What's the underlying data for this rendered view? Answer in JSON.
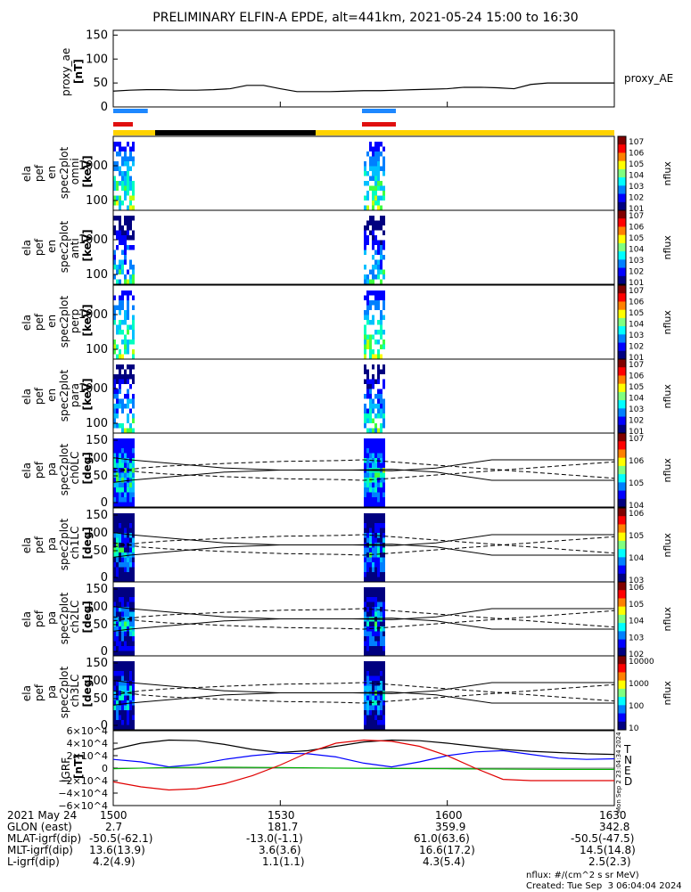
{
  "title": "PRELIMINARY ELFIN-A EPDE, alt=441km, 2021-05-24 15:00 to 16:30",
  "colors": {
    "blue_bar": "#1e88ff",
    "red_bar": "#e01010",
    "yellow_bar": "#ffd200",
    "black_bar": "#000000",
    "bfield_T": "#000000",
    "bfield_N": "#0000ff",
    "bfield_E": "#00b000",
    "bfield_D": "#e00000"
  },
  "proxy_ae": {
    "ylabel_lines": [
      "proxy_ae",
      "[nT]"
    ],
    "legend": "proxy_AE",
    "yticks": [
      "150",
      "100",
      "50",
      "0"
    ]
  },
  "spectrograms": [
    {
      "label_lines": [
        "ela",
        "pef",
        "en",
        "spec2plot",
        "omni",
        "[keV]"
      ],
      "yticks": [
        "1000",
        "100"
      ],
      "cbar_ticks": [
        "10^7",
        "10^6",
        "10^5",
        "10^4",
        "10^3",
        "10^2",
        "10^1"
      ],
      "cbar_label": "nflux"
    },
    {
      "label_lines": [
        "ela",
        "pef",
        "en",
        "spec2plot",
        "anti",
        "[keV]"
      ],
      "yticks": [
        "1000",
        "100"
      ],
      "cbar_ticks": [
        "10^7",
        "10^6",
        "10^5",
        "10^4",
        "10^3",
        "10^2",
        "10^1"
      ],
      "cbar_label": "nflux"
    },
    {
      "label_lines": [
        "ela",
        "pef",
        "en",
        "spec2plot",
        "perp",
        "[keV]"
      ],
      "yticks": [
        "1000",
        "100"
      ],
      "cbar_ticks": [
        "10^7",
        "10^6",
        "10^5",
        "10^4",
        "10^3",
        "10^2",
        "10^1"
      ],
      "cbar_label": "nflux"
    },
    {
      "label_lines": [
        "ela",
        "pef",
        "en",
        "spec2plot",
        "para",
        "[keV]"
      ],
      "yticks": [
        "1000",
        "100"
      ],
      "cbar_ticks": [
        "10^7",
        "10^6",
        "10^5",
        "10^4",
        "10^3",
        "10^2",
        "10^1"
      ],
      "cbar_label": "nflux"
    },
    {
      "label_lines": [
        "ela",
        "pef",
        "pa",
        "spec2plot",
        "ch0LC",
        "[deg]"
      ],
      "yticks": [
        "150",
        "100",
        "50",
        "0"
      ],
      "cbar_ticks": [
        "10^7",
        "10^6",
        "10^5",
        "10^4"
      ],
      "cbar_label": "nflux"
    },
    {
      "label_lines": [
        "ela",
        "pef",
        "pa",
        "spec2plot",
        "ch1LC",
        "[deg]"
      ],
      "yticks": [
        "150",
        "100",
        "50",
        "0"
      ],
      "cbar_ticks": [
        "10^6",
        "10^5",
        "10^4",
        "10^3"
      ],
      "cbar_label": "nflux"
    },
    {
      "label_lines": [
        "ela",
        "pef",
        "pa",
        "spec2plot",
        "ch2LC",
        "[deg]"
      ],
      "yticks": [
        "150",
        "100",
        "50",
        "0"
      ],
      "cbar_ticks": [
        "10^6",
        "10^5",
        "10^4",
        "10^3",
        "10^2"
      ],
      "cbar_label": "nflux"
    },
    {
      "label_lines": [
        "ela",
        "pef",
        "pa",
        "spec2plot",
        "ch3LC",
        "[deg]"
      ],
      "yticks": [
        "150",
        "100",
        "50",
        "0"
      ],
      "cbar_ticks": [
        "10000",
        "1000",
        "100",
        "10"
      ],
      "cbar_label": "nflux"
    }
  ],
  "igrf": {
    "ylabel_lines": [
      "IGRF",
      "[nT]"
    ],
    "yticks": [
      "6×10^4",
      "4×10^4",
      "2×10^4",
      "0",
      "−2×10^4",
      "−4×10^4",
      "−6×10^4"
    ],
    "legend": [
      "T",
      "N",
      "E",
      "D"
    ]
  },
  "timestamp_side": "Mon Sep  2 23:04:34 2024",
  "footer": {
    "rows": [
      {
        "label": "2021 May 24",
        "values": [
          "1500",
          "1530",
          "1600",
          "1630"
        ]
      },
      {
        "label": "GLON (east)",
        "values": [
          "2.7",
          "181.7",
          "359.9",
          "342.8"
        ]
      },
      {
        "label": "MLAT-igrf(dip)",
        "values": [
          "-50.5(-62.1)",
          "-13.0(-1.1)",
          "61.0(63.6)",
          "-50.5(-47.5)"
        ]
      },
      {
        "label": "MLT-igrf(dip)",
        "values": [
          "13.6(13.9)",
          "3.6(3.6)",
          "16.6(17.2)",
          "14.5(14.8)"
        ]
      },
      {
        "label": "L-igrf(dip)",
        "values": [
          "4.2(4.9)",
          "1.1(1.1)",
          "4.3(5.4)",
          "2.5(2.3)"
        ]
      }
    ],
    "units_note": "nflux: #/(cm^2 s sr MeV)",
    "created": "Created: Tue Sep  3 06:04:04 2024"
  },
  "chart_data": {
    "type": "line",
    "title": "PRELIMINARY ELFIN-A EPDE, alt=441km, 2021-05-24 15:00 to 16:30",
    "x_ticks": [
      "1500",
      "1530",
      "1600",
      "1630"
    ],
    "x_minutes": [
      0,
      30,
      60,
      90
    ],
    "series": [
      {
        "name": "proxy_AE",
        "panel": "proxy_ae",
        "x_min": [
          0,
          3,
          6,
          9,
          12,
          15,
          18,
          21,
          24,
          27,
          30,
          33,
          36,
          39,
          42,
          45,
          48,
          51,
          54,
          57,
          60,
          63,
          66,
          69,
          72,
          75,
          78,
          81,
          84,
          87,
          90
        ],
        "y_nT": [
          33,
          35,
          36,
          36,
          35,
          35,
          36,
          38,
          45,
          45,
          38,
          32,
          32,
          32,
          33,
          34,
          34,
          35,
          36,
          37,
          38,
          41,
          41,
          40,
          38,
          47,
          50,
          50,
          50,
          50,
          50
        ]
      },
      {
        "name": "T",
        "panel": "igrf",
        "x_min": [
          0,
          5,
          10,
          15,
          20,
          25,
          30,
          35,
          40,
          45,
          50,
          55,
          60,
          65,
          70,
          75,
          80,
          85,
          90
        ],
        "y_nT": [
          30000,
          40000,
          45000,
          44000,
          38000,
          30000,
          25000,
          28000,
          35000,
          42000,
          45000,
          44000,
          40000,
          35000,
          30000,
          27000,
          25000,
          23000,
          22000
        ]
      },
      {
        "name": "N",
        "panel": "igrf",
        "x_min": [
          0,
          5,
          10,
          15,
          20,
          25,
          30,
          35,
          40,
          45,
          50,
          55,
          60,
          65,
          70,
          75,
          80,
          85,
          90
        ],
        "y_nT": [
          14000,
          10000,
          2000,
          6000,
          14000,
          20000,
          24000,
          23000,
          18000,
          8000,
          2000,
          10000,
          20000,
          26000,
          28000,
          22000,
          16000,
          14000,
          15000
        ]
      },
      {
        "name": "E",
        "panel": "igrf",
        "x_min": [
          0,
          10,
          20,
          30,
          40,
          50,
          60,
          70,
          80,
          90
        ],
        "y_nT": [
          -1000,
          1000,
          1500,
          1000,
          0,
          -500,
          -1000,
          -1500,
          -2000,
          -2000
        ]
      },
      {
        "name": "D",
        "panel": "igrf",
        "x_min": [
          0,
          5,
          10,
          15,
          20,
          25,
          30,
          35,
          40,
          45,
          50,
          55,
          60,
          65,
          70,
          75,
          80,
          85,
          90
        ],
        "y_nT": [
          -22000,
          -30000,
          -35000,
          -33000,
          -25000,
          -12000,
          5000,
          25000,
          40000,
          45000,
          43000,
          35000,
          20000,
          0,
          -18000,
          -20000,
          -20000,
          -20000,
          -20000
        ]
      }
    ],
    "pa_overlays": {
      "solid_upper": {
        "x_min": [
          0,
          3,
          20,
          30,
          43,
          50,
          58,
          68,
          90
        ],
        "y_deg": [
          120,
          115,
          95,
          90,
          90,
          88,
          95,
          115,
          115
        ]
      },
      "solid_lower": {
        "x_min": [
          0,
          3,
          20,
          30,
          43,
          50,
          58,
          68,
          90
        ],
        "y_deg": [
          60,
          65,
          85,
          90,
          90,
          92,
          85,
          65,
          65
        ]
      },
      "dashed_upper": {
        "x_min": [
          0,
          5,
          10,
          20,
          30,
          40,
          45,
          50,
          60,
          70,
          80,
          90
        ],
        "y_deg": [
          85,
          95,
          100,
          106,
          111,
          113,
          115,
          110,
          100,
          90,
          80,
          70
        ]
      },
      "dashed_lower": {
        "x_min": [
          0,
          5,
          10,
          20,
          30,
          40,
          45,
          50,
          60,
          70,
          80,
          90
        ],
        "y_deg": [
          95,
          85,
          80,
          74,
          69,
          67,
          65,
          70,
          80,
          90,
          100,
          110
        ]
      }
    },
    "spectrogram_bursts": [
      {
        "x_start_min": 0,
        "x_end_min": 3
      },
      {
        "x_start_min": 45,
        "x_end_min": 48
      }
    ],
    "ylim_spec_keV": [
      60,
      7000
    ],
    "ylim_pa_deg": [
      0,
      180
    ],
    "ylim_proxy_nT": [
      0,
      160
    ],
    "ylim_igrf_nT": [
      -60000,
      60000
    ]
  }
}
